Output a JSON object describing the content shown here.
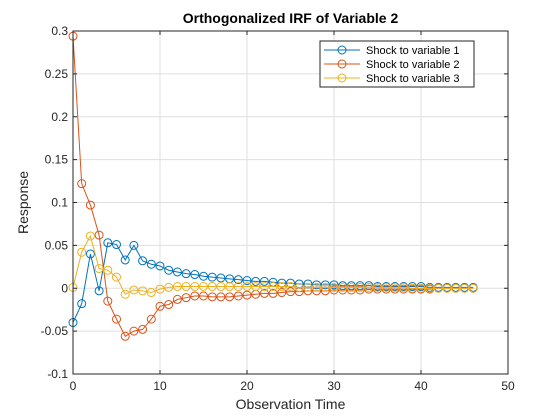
{
  "chart_data": {
    "type": "line",
    "title": "Orthogonalized IRF of Variable 2",
    "xlabel": "Observation Time",
    "ylabel": "Response",
    "xlim": [
      0,
      50
    ],
    "ylim": [
      -0.1,
      0.3
    ],
    "xticks": [
      0,
      10,
      20,
      30,
      40,
      50
    ],
    "yticks": [
      -0.1,
      -0.05,
      0,
      0.05,
      0.1,
      0.15,
      0.2,
      0.25,
      0.3
    ],
    "xtick_labels": [
      "0",
      "10",
      "20",
      "30",
      "40",
      "50"
    ],
    "ytick_labels": [
      "-0.1",
      "-0.05",
      "0",
      "0.05",
      "0.1",
      "0.15",
      "0.2",
      "0.25",
      "0.3"
    ],
    "grid": true,
    "legend_position": "top-right",
    "marker": "circle",
    "series": [
      {
        "name": "Shock to variable 1",
        "color": "#0072BD",
        "values": [
          -0.04,
          -0.018,
          0.04,
          -0.003,
          0.053,
          0.051,
          0.033,
          0.05,
          0.032,
          0.028,
          0.026,
          0.021,
          0.019,
          0.017,
          0.016,
          0.014,
          0.013,
          0.012,
          0.011,
          0.01,
          0.009,
          0.008,
          0.008,
          0.007,
          0.006,
          0.006,
          0.005,
          0.005,
          0.004,
          0.004,
          0.004,
          0.003,
          0.003,
          0.003,
          0.003,
          0.002,
          0.002,
          0.002,
          0.002,
          0.002,
          0.002,
          0.001,
          0.001,
          0.001,
          0.001,
          0.001,
          0.001
        ]
      },
      {
        "name": "Shock to variable 2",
        "color": "#D95319",
        "values": [
          0.294,
          0.122,
          0.097,
          0.062,
          -0.015,
          -0.036,
          -0.056,
          -0.05,
          -0.048,
          -0.036,
          -0.021,
          -0.019,
          -0.013,
          -0.011,
          -0.009,
          -0.009,
          -0.01,
          -0.01,
          -0.01,
          -0.009,
          -0.008,
          -0.007,
          -0.006,
          -0.006,
          -0.005,
          -0.004,
          -0.004,
          -0.003,
          -0.003,
          -0.003,
          -0.002,
          -0.002,
          -0.002,
          -0.002,
          -0.001,
          -0.001,
          -0.001,
          -0.001,
          -0.001,
          -0.001,
          -0.001,
          -0.001,
          0.0,
          0.0,
          0.0,
          0.0,
          0.0
        ]
      },
      {
        "name": "Shock to variable 3",
        "color": "#EDB120",
        "values": [
          0.001,
          0.042,
          0.061,
          0.023,
          0.021,
          0.013,
          -0.007,
          -0.002,
          -0.003,
          -0.005,
          -0.001,
          0.001,
          0.002,
          0.002,
          0.002,
          0.002,
          0.002,
          0.002,
          0.002,
          0.002,
          0.002,
          0.002,
          0.002,
          0.002,
          0.002,
          0.002,
          0.001,
          0.001,
          0.001,
          0.001,
          0.001,
          0.001,
          0.001,
          0.001,
          0.001,
          0.001,
          0.001,
          0.001,
          0.001,
          0.0,
          0.0,
          0.0,
          0.0,
          0.0,
          0.0,
          0.0,
          0.0
        ]
      }
    ]
  }
}
